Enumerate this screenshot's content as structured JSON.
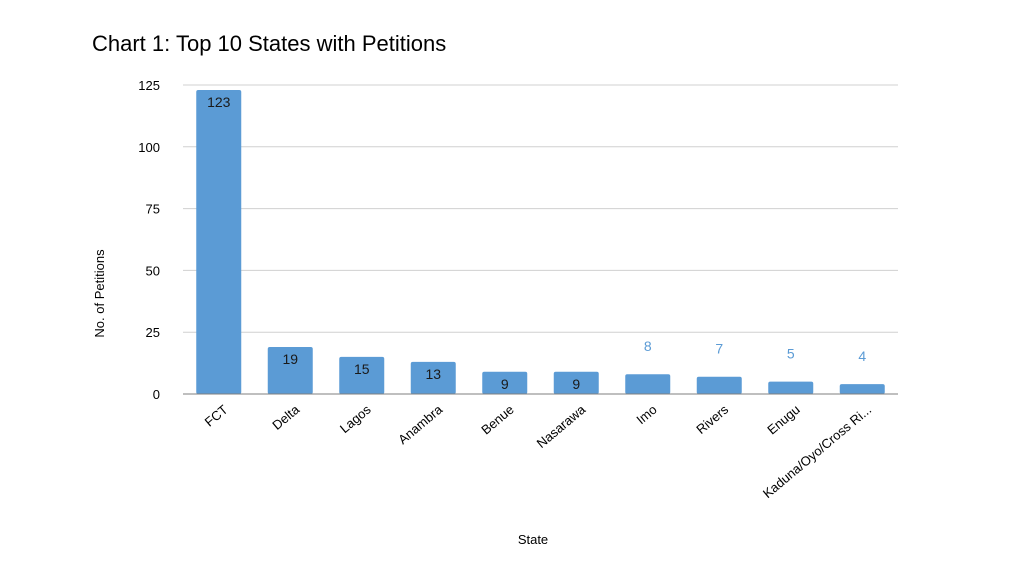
{
  "chart_data": {
    "type": "bar",
    "title": "Chart 1: Top 10 States with Petitions",
    "xlabel": "State",
    "ylabel": "No. of Petitions",
    "categories": [
      "FCT",
      "Delta",
      "Lagos",
      "Anambra",
      "Benue",
      "Nasarawa",
      "Imo",
      "Rivers",
      "Enugu",
      "Kaduna/Oyo/Cross Ri..."
    ],
    "values": [
      123,
      19,
      15,
      13,
      9,
      9,
      8,
      7,
      5,
      4
    ],
    "ylim": [
      0,
      125
    ],
    "yticks": [
      0,
      25,
      50,
      75,
      100,
      125
    ],
    "grid": true,
    "legend": "none",
    "bar_color": "#5b9bd5",
    "label_outside_color": "#5b9bd5"
  }
}
